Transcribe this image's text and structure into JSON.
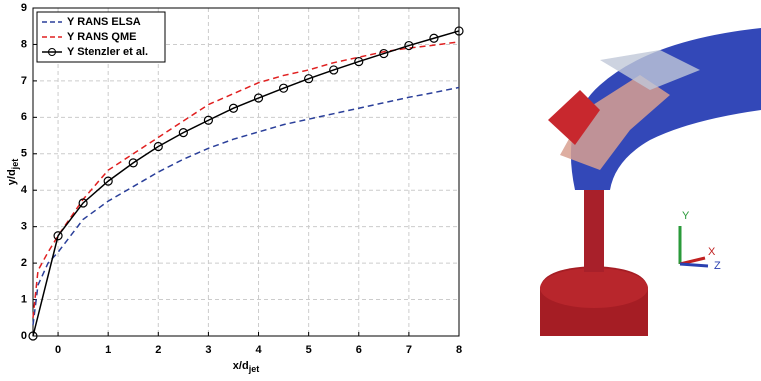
{
  "chart_data": {
    "type": "line",
    "xlabel": {
      "text": "x/d",
      "subscript": "jet"
    },
    "ylabel": {
      "text": "y/d",
      "subscript": "jet"
    },
    "xlim": [
      -0.5,
      8
    ],
    "ylim": [
      0,
      9
    ],
    "xticks": [
      0,
      1,
      2,
      3,
      4,
      5,
      6,
      7,
      8
    ],
    "yticks": [
      0,
      1,
      2,
      3,
      4,
      5,
      6,
      7,
      8,
      9
    ],
    "grid": true,
    "legend": "upper left",
    "series": [
      {
        "name": "Y RANS ELSA",
        "color": "#2a3f9a",
        "dash": true,
        "marker": false,
        "x": [
          -0.5,
          -0.4,
          -0.2,
          0,
          0.5,
          1,
          1.5,
          2,
          2.5,
          3,
          3.5,
          4,
          4.5,
          5,
          5.5,
          6,
          6.5,
          7,
          7.5,
          8
        ],
        "values": [
          0.3,
          1.4,
          2.0,
          2.3,
          3.2,
          3.7,
          4.1,
          4.5,
          4.85,
          5.15,
          5.4,
          5.6,
          5.8,
          5.95,
          6.1,
          6.25,
          6.4,
          6.55,
          6.68,
          6.82
        ]
      },
      {
        "name": "Y RANS QME",
        "color": "#e02020",
        "dash": true,
        "marker": false,
        "x": [
          -0.5,
          -0.4,
          -0.2,
          0,
          0.5,
          1,
          1.5,
          2,
          2.5,
          3,
          3.5,
          4,
          4.5,
          5,
          5.5,
          6,
          6.5,
          7,
          7.5,
          8
        ],
        "values": [
          0.5,
          1.8,
          2.3,
          2.75,
          3.75,
          4.55,
          5.0,
          5.45,
          5.9,
          6.35,
          6.65,
          6.95,
          7.15,
          7.3,
          7.5,
          7.65,
          7.8,
          7.9,
          7.98,
          8.07
        ]
      },
      {
        "name": "Y Stenzler et al.",
        "color": "#000000",
        "dash": false,
        "marker": true,
        "x": [
          -0.5,
          0,
          0.5,
          1,
          1.5,
          2,
          2.5,
          3,
          3.5,
          4,
          4.5,
          5,
          5.5,
          6,
          6.5,
          7,
          7.5,
          8
        ],
        "values": [
          0,
          2.75,
          3.65,
          4.25,
          4.75,
          5.2,
          5.58,
          5.92,
          6.25,
          6.53,
          6.8,
          7.06,
          7.3,
          7.53,
          7.75,
          7.97,
          8.17,
          8.37
        ]
      }
    ]
  },
  "render": {
    "axis_labels": {
      "y": "Y",
      "x": "X",
      "z": "Z"
    }
  }
}
